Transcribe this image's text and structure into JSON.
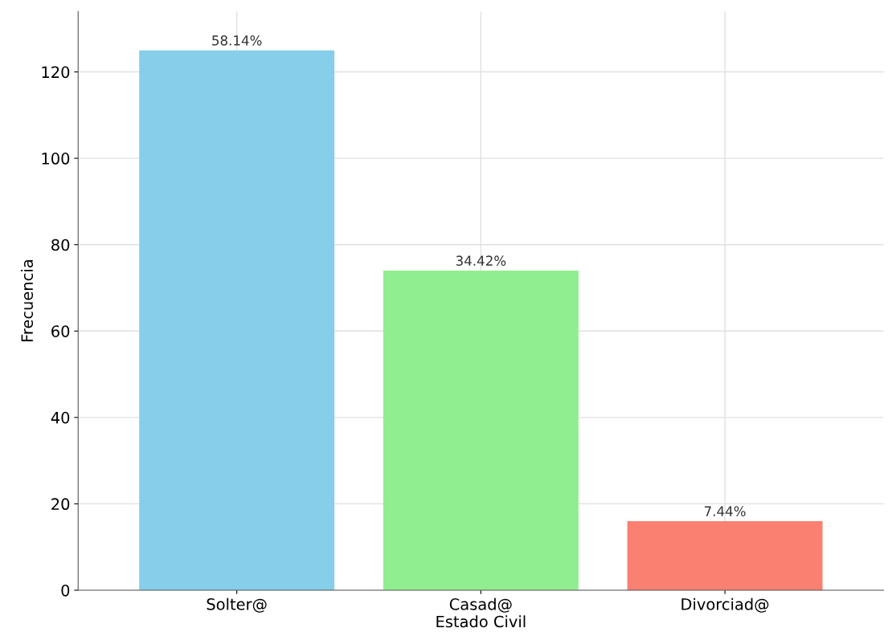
{
  "chart_data": {
    "type": "bar",
    "xlabel": "Estado Civil",
    "ylabel": "Frecuencia",
    "categories": [
      "Solter@",
      "Casad@",
      "Divorciad@"
    ],
    "values": [
      125,
      74,
      16
    ],
    "colors": [
      "#87ceeb",
      "#90ee90",
      "#fa8072"
    ],
    "annotations": [
      {
        "text": "58.14%",
        "x": "Solter@",
        "y": 125
      },
      {
        "text": "34.42%",
        "x": "Casad@",
        "y": 74
      },
      {
        "text": "7.44%",
        "x": "Divorciad@",
        "y": 16
      }
    ],
    "ylim": [
      0,
      134
    ],
    "yticks": [
      0,
      20,
      40,
      60,
      80,
      100,
      120
    ],
    "grid": true
  }
}
